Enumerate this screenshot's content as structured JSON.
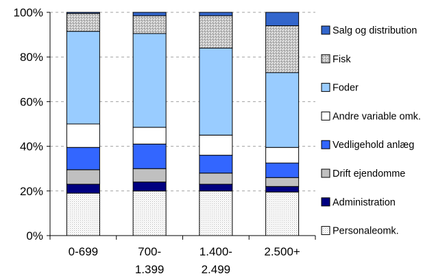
{
  "chart_data": {
    "type": "bar",
    "stacked": true,
    "percent_stacked": true,
    "categories": [
      "0-699",
      "700-\n1.399",
      "1.400-\n2.499",
      "2.500+"
    ],
    "y_ticks": [
      "0%",
      "20%",
      "40%",
      "60%",
      "80%",
      "100%"
    ],
    "ylim": [
      0,
      100
    ],
    "grid": "horizontal dashed",
    "legend_position": "right",
    "series": [
      {
        "name": "Personaleomk.",
        "values": [
          19,
          20,
          20,
          19.5
        ],
        "color": "#ffffff",
        "pattern": "dots"
      },
      {
        "name": "Administration",
        "values": [
          4,
          4,
          3,
          2.5
        ],
        "color": "#000080"
      },
      {
        "name": "Drift ejendomme",
        "values": [
          6.5,
          6,
          5,
          4
        ],
        "color": "#c0c0c0"
      },
      {
        "name": "Vedligehold anlæg",
        "values": [
          10,
          11,
          8,
          6.5
        ],
        "color": "#3366ff"
      },
      {
        "name": "Andre variable omk.",
        "values": [
          10.5,
          7.5,
          9,
          7
        ],
        "color": "#ffffff"
      },
      {
        "name": "Foder",
        "values": [
          41.5,
          42,
          39,
          33.5
        ],
        "color": "#99ccff"
      },
      {
        "name": "Fisk",
        "values": [
          8,
          8,
          14.5,
          21
        ],
        "color": "#c0c0c0",
        "pattern": "speckle"
      },
      {
        "name": "Salg og distribution",
        "values": [
          0.5,
          1.5,
          1.5,
          6
        ],
        "color": "#3366cc"
      }
    ]
  }
}
